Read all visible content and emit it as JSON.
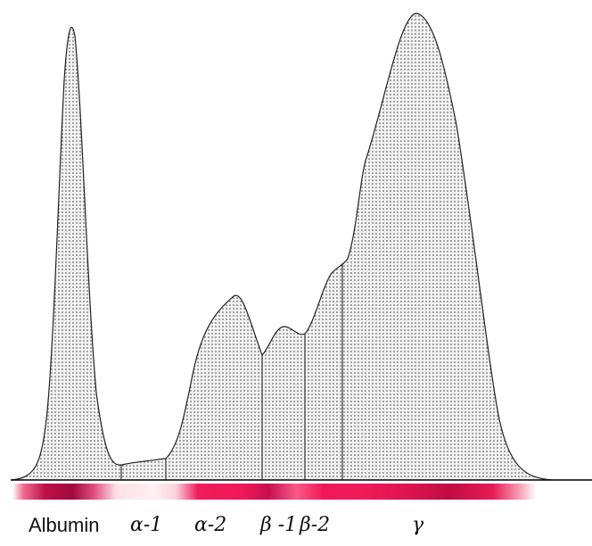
{
  "fractions": [
    {
      "id": "albumin",
      "label": "Albumin"
    },
    {
      "id": "alpha1",
      "label": "α-1"
    },
    {
      "id": "alpha2",
      "label": "α-2"
    },
    {
      "id": "beta1",
      "label": "β -1"
    },
    {
      "id": "beta2",
      "label": "β-2"
    },
    {
      "id": "gamma",
      "label": "γ"
    }
  ],
  "colors": {
    "curve_fill": "#e6e6e6",
    "curve_dots": "#333333",
    "outline": "#222222",
    "band_dark": "#c0104a",
    "band_bright": "#f0185a"
  }
}
